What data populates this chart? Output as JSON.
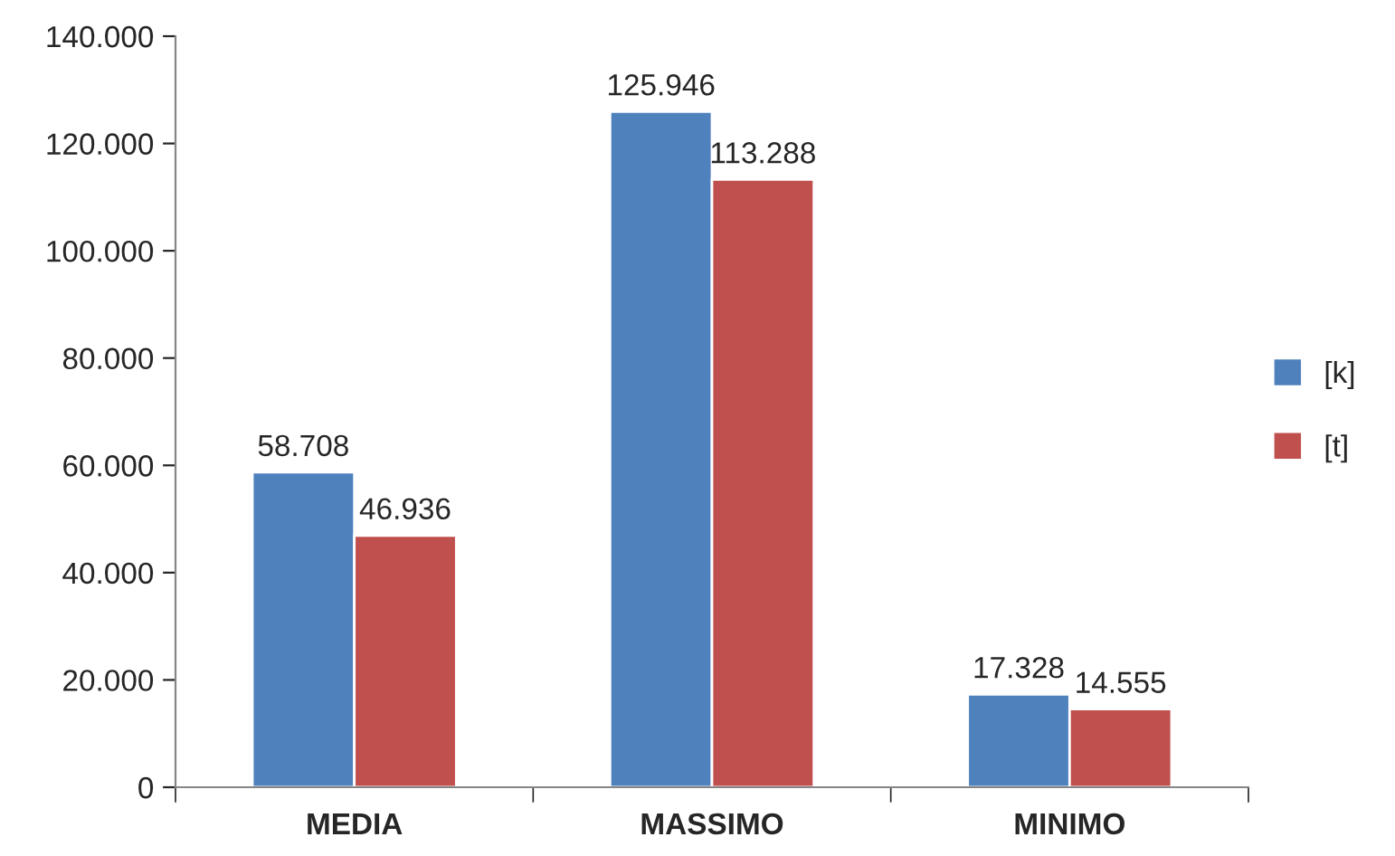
{
  "chart_data": {
    "type": "bar",
    "categories": [
      "MEDIA",
      "MASSIMO",
      "MINIMO"
    ],
    "series": [
      {
        "name": "[k]",
        "color": "#4f81bd",
        "values": [
          58708,
          125946,
          17328
        ],
        "value_labels": [
          "58.708",
          "125.946",
          "17.328"
        ]
      },
      {
        "name": "[t]",
        "color": "#c0504d",
        "values": [
          46936,
          113288,
          14555
        ],
        "value_labels": [
          "46.936",
          "113.288",
          "14.555"
        ]
      }
    ],
    "ylim": [
      0,
      140000
    ],
    "yticks": [
      0,
      {
        "value": 20000,
        "label": "20.000"
      },
      {
        "value": 40000,
        "label": "40.000"
      },
      {
        "value": 60000,
        "label": "60.000"
      },
      {
        "value": 80000,
        "label": "80.000"
      },
      {
        "value": 100000,
        "label": "100.000"
      },
      {
        "value": 120000,
        "label": "120.000"
      },
      {
        "value": 140000,
        "label": "140.000"
      }
    ],
    "grid": false,
    "legend": "right"
  }
}
